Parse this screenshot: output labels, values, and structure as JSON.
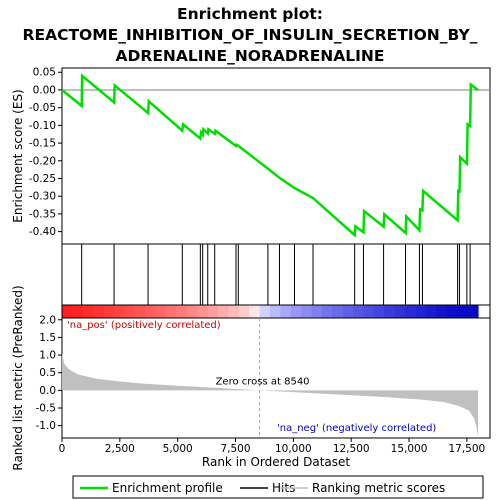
{
  "title_lines": [
    "Enrichment plot:",
    "REACTOME_INHIBITION_OF_INSULIN_SECRETION_BY_",
    "ADRENALINE_NORADRENALINE"
  ],
  "colors": {
    "es_line": "#00dd00",
    "hits": "#000000",
    "metric_fill": "#c0c0c0",
    "zero_line": "#808080",
    "pos_label": "#cc0000",
    "neg_label": "#0000cc"
  },
  "chart_data": {
    "type": "line",
    "xlabel": "Rank in Ordered Dataset",
    "x_range": [
      0,
      18500
    ],
    "x_ticks": [
      0,
      2500,
      5000,
      7500,
      10000,
      12500,
      15000,
      17500
    ],
    "x_tick_labels": [
      "0",
      "2,500",
      "5,000",
      "7,500",
      "10,000",
      "12,500",
      "15,000",
      "17,500"
    ],
    "es_panel": {
      "ylabel": "Enrichment score (ES)",
      "ylim": [
        -0.435,
        0.062
      ],
      "y_ticks": [
        0.05,
        0.0,
        -0.05,
        -0.1,
        -0.15,
        -0.2,
        -0.25,
        -0.3,
        -0.35,
        -0.4
      ],
      "y_tick_labels": [
        "0.05",
        "0.00",
        "-0.05",
        "-0.10",
        "-0.15",
        "-0.20",
        "-0.25",
        "-0.30",
        "-0.35",
        "-0.40"
      ],
      "es_points": [
        [
          0,
          0.0
        ],
        [
          850,
          -0.045
        ],
        [
          870,
          0.04
        ],
        [
          2250,
          -0.035
        ],
        [
          2280,
          0.013
        ],
        [
          3720,
          -0.065
        ],
        [
          3750,
          -0.032
        ],
        [
          5200,
          -0.115
        ],
        [
          5230,
          -0.097
        ],
        [
          5980,
          -0.137
        ],
        [
          6010,
          -0.12
        ],
        [
          6080,
          -0.127
        ],
        [
          6110,
          -0.111
        ],
        [
          6300,
          -0.123
        ],
        [
          6330,
          -0.111
        ],
        [
          6600,
          -0.124
        ],
        [
          6630,
          -0.115
        ],
        [
          7520,
          -0.158
        ],
        [
          7550,
          -0.155
        ],
        [
          7620,
          -0.158
        ],
        [
          8900,
          -0.222
        ],
        [
          9400,
          -0.248
        ],
        [
          10050,
          -0.277
        ],
        [
          10850,
          -0.305
        ],
        [
          12650,
          -0.41
        ],
        [
          12680,
          -0.385
        ],
        [
          13030,
          -0.402
        ],
        [
          13060,
          -0.342
        ],
        [
          13900,
          -0.386
        ],
        [
          13930,
          -0.351
        ],
        [
          14850,
          -0.404
        ],
        [
          14880,
          -0.357
        ],
        [
          15450,
          -0.396
        ],
        [
          15480,
          -0.337
        ],
        [
          15580,
          -0.34
        ],
        [
          15610,
          -0.285
        ],
        [
          17100,
          -0.368
        ],
        [
          17130,
          -0.281
        ],
        [
          17180,
          -0.29
        ],
        [
          17210,
          -0.19
        ],
        [
          17500,
          -0.208
        ],
        [
          17530,
          -0.097
        ],
        [
          17640,
          -0.102
        ],
        [
          17670,
          0.015
        ],
        [
          17980,
          0.0
        ]
      ],
      "hits": [
        850,
        2250,
        3720,
        5200,
        5980,
        6080,
        6300,
        6600,
        7520,
        7620,
        8900,
        9400,
        10050,
        10850,
        12650,
        13030,
        13900,
        14850,
        15450,
        15580,
        17100,
        17180,
        17500,
        17640
      ]
    },
    "metric_panel": {
      "ylabel": "Ranked list metric (PreRanked)",
      "ylim": [
        -1.35,
        2.05
      ],
      "y_ticks": [
        2.0,
        1.5,
        1.0,
        0.5,
        0.0,
        -0.5,
        -1.0
      ],
      "y_tick_labels": [
        "2.0",
        "1.5",
        "1.0",
        "0.5",
        "0.0",
        "-0.5",
        "-1.0"
      ],
      "zero_cross": 8540,
      "zero_cross_label": "Zero cross at 8540",
      "pos_label": "'na_pos' (positively correlated)",
      "neg_label": "'na_neg' (negatively correlated)",
      "metric_points": [
        [
          0,
          1.05
        ],
        [
          100,
          0.75
        ],
        [
          300,
          0.6
        ],
        [
          700,
          0.45
        ],
        [
          1500,
          0.33
        ],
        [
          2500,
          0.25
        ],
        [
          3500,
          0.19
        ],
        [
          5000,
          0.13
        ],
        [
          7000,
          0.06
        ],
        [
          8540,
          0.0
        ],
        [
          10000,
          -0.05
        ],
        [
          12000,
          -0.12
        ],
        [
          14000,
          -0.19
        ],
        [
          15500,
          -0.26
        ],
        [
          16500,
          -0.33
        ],
        [
          17200,
          -0.45
        ],
        [
          17600,
          -0.58
        ],
        [
          17800,
          -0.78
        ],
        [
          17900,
          -1.0
        ],
        [
          17980,
          -1.3
        ]
      ]
    },
    "legend": [
      "Enrichment profile",
      "Hits",
      "Ranking metric scores"
    ]
  }
}
